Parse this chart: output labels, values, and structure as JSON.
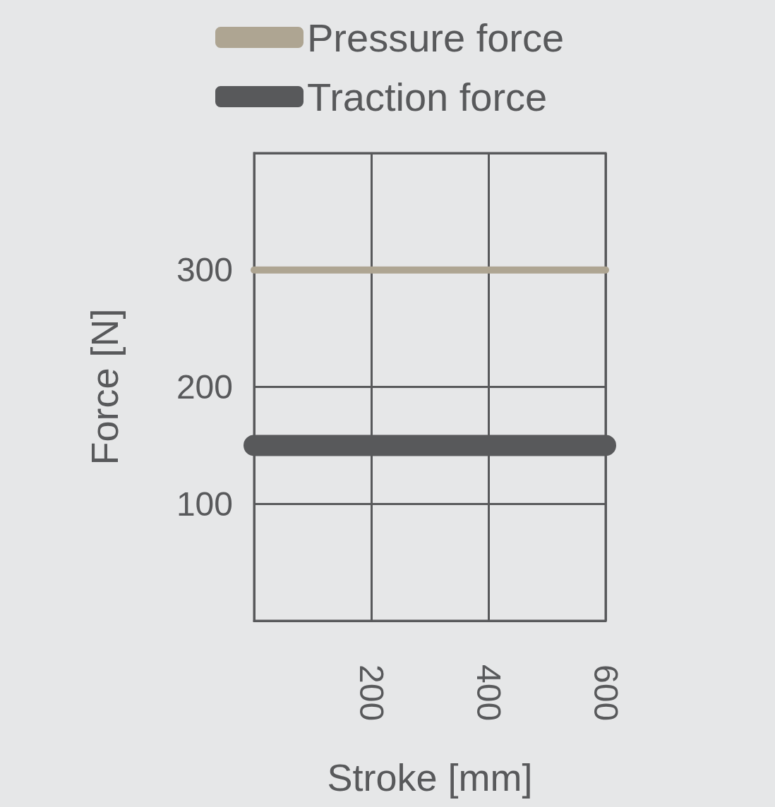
{
  "chart_data": {
    "type": "line",
    "xlabel": "Stroke [mm]",
    "ylabel": "Force [N]",
    "x": [
      0,
      600
    ],
    "series": [
      {
        "name": "Pressure force",
        "color": "#aea592",
        "values": [
          300,
          300
        ]
      },
      {
        "name": "Traction force",
        "color": "#58595b",
        "values": [
          150,
          150
        ]
      }
    ],
    "xlim": [
      0,
      600
    ],
    "xticks": [
      {
        "value": 0,
        "label": null
      },
      200,
      400,
      600
    ],
    "ylim": [
      0,
      400
    ],
    "yticks": [
      {
        "value": 0,
        "label": null
      },
      100,
      200,
      300,
      {
        "value": 400,
        "label": null
      }
    ],
    "grid": true,
    "legend": "top",
    "line_style": "solid"
  }
}
